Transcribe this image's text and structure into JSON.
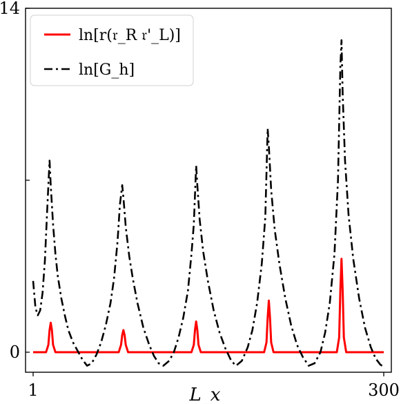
{
  "chart_data": {
    "type": "line",
    "title": "",
    "xlabel": "L_x",
    "ylabel": "",
    "xlim": [
      1,
      300
    ],
    "ylim": [
      -0.6,
      14
    ],
    "xticks": [
      1,
      300
    ],
    "yticks": [
      0,
      7,
      14
    ],
    "xtick_labels": [
      "1",
      "300"
    ],
    "ytick_labels": [
      "0",
      "",
      "14"
    ],
    "grid": false,
    "legend_position": "top-left",
    "legend": [
      "ln[r(𝔯_R 𝔯'_L)]",
      "ln[G_h]"
    ],
    "series": [
      {
        "name": "ln[r(𝔯_R 𝔯'_L)]",
        "color": "#ff0000",
        "style": "solid",
        "points": [
          [
            1,
            0
          ],
          [
            12,
            0
          ],
          [
            14,
            0.3
          ],
          [
            15,
            0.9
          ],
          [
            16,
            1.2
          ],
          [
            17,
            0.9
          ],
          [
            18,
            0.3
          ],
          [
            20,
            0
          ],
          [
            74,
            0
          ],
          [
            76,
            0.3
          ],
          [
            77,
            0.7
          ],
          [
            78,
            0.9
          ],
          [
            79,
            0.7
          ],
          [
            80,
            0.3
          ],
          [
            82,
            0
          ],
          [
            136,
            0
          ],
          [
            138,
            0.3
          ],
          [
            139,
            0.9
          ],
          [
            140,
            1.25
          ],
          [
            141,
            0.9
          ],
          [
            142,
            0.3
          ],
          [
            144,
            0
          ],
          [
            198,
            0
          ],
          [
            200,
            0.4
          ],
          [
            201,
            1.4
          ],
          [
            202,
            2.1
          ],
          [
            203,
            1.4
          ],
          [
            204,
            0.4
          ],
          [
            206,
            0
          ],
          [
            260,
            0
          ],
          [
            262,
            0.6
          ],
          [
            263,
            2.5
          ],
          [
            264,
            3.8
          ],
          [
            265,
            2.5
          ],
          [
            266,
            0.6
          ],
          [
            268,
            0
          ],
          [
            300,
            0
          ]
        ]
      },
      {
        "name": "ln[G_h]",
        "color": "#000000",
        "style": "dashdot",
        "points": [
          [
            1,
            2.9
          ],
          [
            3,
            1.8
          ],
          [
            5,
            1.5
          ],
          [
            7,
            1.7
          ],
          [
            9,
            2.4
          ],
          [
            11,
            3.7
          ],
          [
            13,
            5.8
          ],
          [
            15,
            7.8
          ],
          [
            16,
            6.8
          ],
          [
            18,
            5.2
          ],
          [
            20,
            4.0
          ],
          [
            22,
            3.1
          ],
          [
            25,
            2.2
          ],
          [
            28,
            1.5
          ],
          [
            31,
            0.9
          ],
          [
            35,
            0.4
          ],
          [
            39,
            0.05
          ],
          [
            43,
            -0.3
          ],
          [
            47,
            -0.55
          ],
          [
            51,
            -0.45
          ],
          [
            55,
            -0.1
          ],
          [
            59,
            0.4
          ],
          [
            63,
            1.1
          ],
          [
            67,
            2.0
          ],
          [
            70,
            3.0
          ],
          [
            73,
            4.5
          ],
          [
            75,
            6.0
          ],
          [
            77,
            6.8
          ],
          [
            78,
            6.3
          ],
          [
            80,
            5.1
          ],
          [
            83,
            3.9
          ],
          [
            86,
            3.0
          ],
          [
            90,
            2.0
          ],
          [
            95,
            1.0
          ],
          [
            100,
            0.3
          ],
          [
            104,
            -0.15
          ],
          [
            108,
            -0.45
          ],
          [
            112,
            -0.55
          ],
          [
            117,
            -0.35
          ],
          [
            121,
            0.0
          ],
          [
            125,
            0.6
          ],
          [
            129,
            1.4
          ],
          [
            133,
            2.5
          ],
          [
            136,
            4.0
          ],
          [
            138,
            5.2
          ],
          [
            140,
            7.6
          ],
          [
            141,
            6.8
          ],
          [
            143,
            5.4
          ],
          [
            146,
            4.1
          ],
          [
            150,
            2.9
          ],
          [
            155,
            1.7
          ],
          [
            160,
            0.8
          ],
          [
            165,
            0.15
          ],
          [
            170,
            -0.35
          ],
          [
            174,
            -0.55
          ],
          [
            179,
            -0.35
          ],
          [
            184,
            0.2
          ],
          [
            188,
            0.9
          ],
          [
            192,
            2.0
          ],
          [
            196,
            3.6
          ],
          [
            199,
            5.5
          ],
          [
            201,
            9.1
          ],
          [
            202,
            8.4
          ],
          [
            204,
            6.6
          ],
          [
            207,
            5.0
          ],
          [
            211,
            3.6
          ],
          [
            216,
            2.2
          ],
          [
            221,
            1.1
          ],
          [
            226,
            0.3
          ],
          [
            231,
            -0.2
          ],
          [
            236,
            -0.55
          ],
          [
            241,
            -0.45
          ],
          [
            246,
            0.0
          ],
          [
            250,
            0.8
          ],
          [
            254,
            2.0
          ],
          [
            258,
            4.0
          ],
          [
            261,
            7.0
          ],
          [
            263,
            11.6
          ],
          [
            264,
            12.7
          ],
          [
            265,
            10.5
          ],
          [
            267,
            7.8
          ],
          [
            270,
            5.6
          ],
          [
            274,
            3.8
          ],
          [
            279,
            2.2
          ],
          [
            284,
            1.0
          ],
          [
            289,
            0.2
          ],
          [
            293,
            -0.25
          ],
          [
            297,
            -0.5
          ],
          [
            300,
            -0.6
          ]
        ]
      }
    ]
  }
}
